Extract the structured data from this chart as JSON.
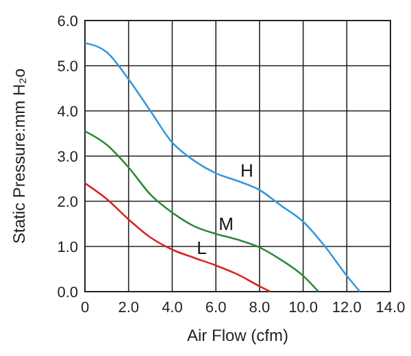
{
  "chart_data": {
    "type": "line",
    "xlabel": "Air Flow (cfm)",
    "ylabel": "Static Pressure:mm H₂o",
    "xlim": [
      0,
      14
    ],
    "ylim": [
      0,
      6
    ],
    "xticks": [
      0,
      {
        "value": 2,
        "label": "2.0"
      },
      {
        "value": 4,
        "label": "4.0"
      },
      {
        "value": 6,
        "label": "6.0"
      },
      {
        "value": 8,
        "label": "8.0"
      },
      {
        "value": 10,
        "label": "10.0"
      },
      {
        "value": 12,
        "label": "12.0"
      },
      {
        "value": 14,
        "label": "14.0"
      }
    ],
    "yticks": [
      {
        "value": 0,
        "label": "0.0"
      },
      {
        "value": 1,
        "label": "1.0"
      },
      {
        "value": 2,
        "label": "2.0"
      },
      {
        "value": 3,
        "label": "3.0"
      },
      {
        "value": 4,
        "label": "4.0"
      },
      {
        "value": 5,
        "label": "5.0"
      },
      {
        "value": 6,
        "label": "6.0"
      }
    ],
    "grid": true,
    "marker": "none",
    "line_style": "solid",
    "series": [
      {
        "name": "H",
        "color": "#3399dd",
        "x": [
          0,
          1,
          2,
          3,
          4,
          5,
          6,
          7,
          8,
          9,
          10,
          11,
          12,
          12.6
        ],
        "values": [
          5.5,
          5.3,
          4.7,
          4.0,
          3.3,
          2.9,
          2.62,
          2.45,
          2.25,
          1.9,
          1.55,
          1.0,
          0.35,
          0
        ]
      },
      {
        "name": "M",
        "color": "#2a8a3a",
        "x": [
          0,
          1,
          2,
          3,
          4,
          5,
          6,
          7,
          8,
          9,
          10,
          10.7
        ],
        "values": [
          3.55,
          3.25,
          2.75,
          2.15,
          1.75,
          1.45,
          1.28,
          1.15,
          0.98,
          0.7,
          0.35,
          0
        ]
      },
      {
        "name": "L",
        "color": "#dd2222",
        "x": [
          0,
          1,
          2,
          3,
          4,
          5,
          6,
          7,
          8,
          8.5
        ],
        "values": [
          2.4,
          2.05,
          1.6,
          1.2,
          0.93,
          0.75,
          0.58,
          0.38,
          0.12,
          0
        ]
      }
    ]
  }
}
